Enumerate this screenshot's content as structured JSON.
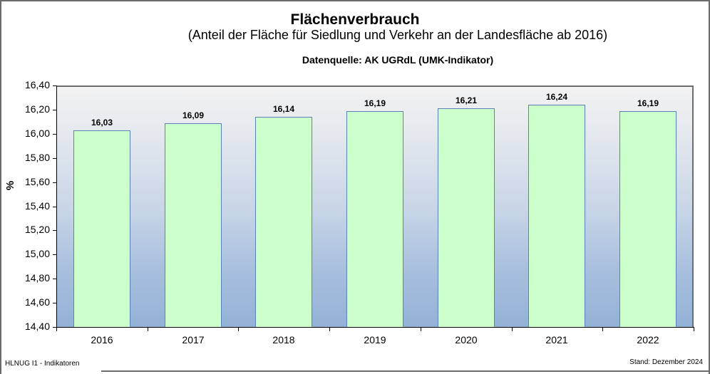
{
  "title": "Flächenverbrauch",
  "subtitle": "(Anteil der Fläche für Siedlung und Verkehr an der Landesfläche ab 2016)",
  "source": "Datenquelle: AK UGRdL (UMK-Indikator)",
  "footer": {
    "left": "HLNUG I1 - Indikatoren",
    "right": "Stand: Dezember 2024"
  },
  "colors": {
    "bar_fill": "#ccffcc",
    "bar_border": "#5b82b8",
    "plot_gradient_top": "#f2f2f2",
    "plot_gradient_bottom": "#93b1d6"
  },
  "chart_data": {
    "type": "bar",
    "title": "Flächenverbrauch",
    "subtitle": "(Anteil der Fläche für Siedlung und Verkehr an der Landesfläche ab 2016)",
    "source": "Datenquelle: AK UGRdL (UMK-Indikator)",
    "categories": [
      "2016",
      "2017",
      "2018",
      "2019",
      "2020",
      "2021",
      "2022"
    ],
    "values": [
      16.03,
      16.09,
      16.14,
      16.19,
      16.21,
      16.24,
      16.19
    ],
    "value_labels": [
      "16,03",
      "16,09",
      "16,14",
      "16,19",
      "16,21",
      "16,24",
      "16,19"
    ],
    "xlabel": "",
    "ylabel": "%",
    "ylim": [
      14.4,
      16.4
    ],
    "yticks": [
      "16,40",
      "16,20",
      "16,00",
      "15,80",
      "15,60",
      "15,40",
      "15,20",
      "15,00",
      "14,80",
      "14,60",
      "14,40"
    ],
    "grid": false,
    "legend": null
  }
}
